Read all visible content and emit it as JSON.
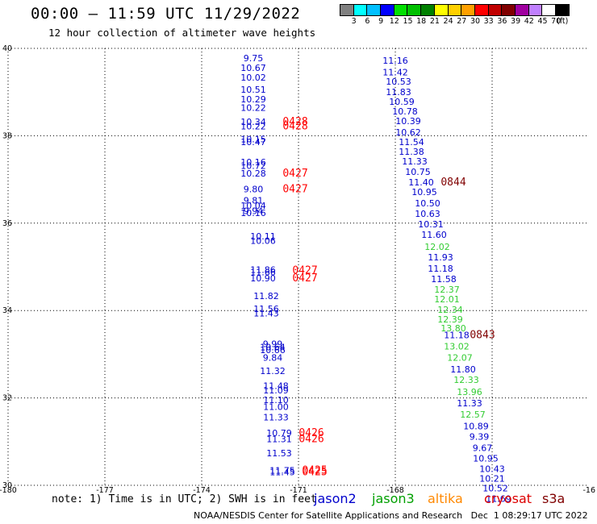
{
  "header": {
    "title": "00:00 — 11:59 UTC 11/29/2022",
    "subtitle": "12 hour collection of altimeter wave heights"
  },
  "colorbar": {
    "colors": [
      "#808080",
      "#00ffff",
      "#00bfff",
      "#0000ff",
      "#00e000",
      "#00c000",
      "#008000",
      "#ffff00",
      "#ffd000",
      "#ffa000",
      "#ff0000",
      "#c00000",
      "#800000",
      "#a000a0",
      "#c080ff",
      "#ffffff",
      "#000000"
    ],
    "labels": [
      "3",
      "6",
      "9",
      "12",
      "15",
      "18",
      "21",
      "24",
      "27",
      "30",
      "33",
      "36",
      "39",
      "42",
      "45",
      "70",
      "(ft)"
    ]
  },
  "note": "note: 1) Time is in UTC; 2) SWH is in feet",
  "legend": [
    {
      "name": "jason2",
      "color": "#0000cc"
    },
    {
      "name": "jason3",
      "color": "#00a000"
    },
    {
      "name": "altika",
      "color": "#ff8800"
    },
    {
      "name": "cryosat",
      "color": "#dd0000"
    },
    {
      "name": "s3a",
      "color": "#800000"
    }
  ],
  "footer": "NOAA/NESDIS Center for Satellite Applications and Research   Dec  1 08:29:17 UTC 2022",
  "chart_data": {
    "type": "scatter",
    "title": "00:00 — 11:59 UTC 11/29/2022",
    "xlim": [
      -180,
      -162
    ],
    "ylim": [
      30,
      40
    ],
    "x_ticks": [
      "-180",
      "-177",
      "-174",
      "-171",
      "-168",
      "-16"
    ],
    "y_ticks": [
      "40",
      "38",
      "36",
      "34",
      "32",
      "30"
    ],
    "grid": true,
    "series": [
      {
        "name": "jason2",
        "color": "#0000cc",
        "points": [
          {
            "x": -172.4,
            "y": 39.78,
            "label": "9.75"
          },
          {
            "x": -172.4,
            "y": 39.56,
            "label": "10.67"
          },
          {
            "x": -172.4,
            "y": 39.34,
            "label": "10.02"
          },
          {
            "x": -172.4,
            "y": 39.06,
            "label": "10.51"
          },
          {
            "x": -172.4,
            "y": 38.84,
            "label": "10.29"
          },
          {
            "x": -172.4,
            "y": 38.64,
            "label": "10.22"
          },
          {
            "x": -172.4,
            "y": 38.32,
            "label": "10.34"
          },
          {
            "x": -172.4,
            "y": 38.22,
            "label": "10.22"
          },
          {
            "x": -172.4,
            "y": 37.92,
            "label": "10.15"
          },
          {
            "x": -172.4,
            "y": 37.86,
            "label": "10.47"
          },
          {
            "x": -172.4,
            "y": 37.4,
            "label": "10.16"
          },
          {
            "x": -172.4,
            "y": 37.32,
            "label": "10.72"
          },
          {
            "x": -172.4,
            "y": 37.14,
            "label": "10.28"
          },
          {
            "x": -172.4,
            "y": 36.78,
            "label": "9.80"
          },
          {
            "x": -172.4,
            "y": 36.52,
            "label": "9.81"
          },
          {
            "x": -172.4,
            "y": 36.4,
            "label": "10.04"
          },
          {
            "x": -172.4,
            "y": 36.28,
            "label": "9.94"
          },
          {
            "x": -172.4,
            "y": 36.24,
            "label": "10.16"
          },
          {
            "x": -172.1,
            "y": 35.7,
            "label": "10.11"
          },
          {
            "x": -172.1,
            "y": 35.6,
            "label": "10.06"
          },
          {
            "x": -172.1,
            "y": 34.94,
            "label": "11.86"
          },
          {
            "x": -172.1,
            "y": 34.88,
            "label": "11.66"
          },
          {
            "x": -172.1,
            "y": 34.74,
            "label": "10.90"
          },
          {
            "x": -172.0,
            "y": 34.34,
            "label": "11.82"
          },
          {
            "x": -172.0,
            "y": 34.04,
            "label": "11.56"
          },
          {
            "x": -172.0,
            "y": 33.94,
            "label": "11.43"
          },
          {
            "x": -171.8,
            "y": 33.24,
            "label": "9.99"
          },
          {
            "x": -171.8,
            "y": 33.16,
            "label": "10.64"
          },
          {
            "x": -171.8,
            "y": 33.1,
            "label": "10.66"
          },
          {
            "x": -171.8,
            "y": 32.92,
            "label": "9.84"
          },
          {
            "x": -171.8,
            "y": 32.62,
            "label": "11.32"
          },
          {
            "x": -171.7,
            "y": 32.28,
            "label": "11.48"
          },
          {
            "x": -171.7,
            "y": 32.18,
            "label": "11.09"
          },
          {
            "x": -171.7,
            "y": 31.96,
            "label": "11.10"
          },
          {
            "x": -171.7,
            "y": 31.8,
            "label": "11.00"
          },
          {
            "x": -171.7,
            "y": 31.56,
            "label": "11.33"
          },
          {
            "x": -171.6,
            "y": 31.2,
            "label": "10.79"
          },
          {
            "x": -171.6,
            "y": 31.06,
            "label": "11.31"
          },
          {
            "x": -171.6,
            "y": 30.74,
            "label": "11.53"
          },
          {
            "x": -171.5,
            "y": 30.34,
            "label": "11.75"
          },
          {
            "x": -171.5,
            "y": 30.3,
            "label": "11.45"
          },
          {
            "x": -168.0,
            "y": 39.72,
            "label": "11.16"
          },
          {
            "x": -168.0,
            "y": 39.46,
            "label": "11.42"
          },
          {
            "x": -167.9,
            "y": 39.24,
            "label": "10.53"
          },
          {
            "x": -167.9,
            "y": 39.0,
            "label": "11.83"
          },
          {
            "x": -167.8,
            "y": 38.78,
            "label": "10.59"
          },
          {
            "x": -167.7,
            "y": 38.56,
            "label": "10.78"
          },
          {
            "x": -167.6,
            "y": 38.34,
            "label": "10.39"
          },
          {
            "x": -167.6,
            "y": 38.08,
            "label": "10.62"
          },
          {
            "x": -167.5,
            "y": 37.86,
            "label": "11.54"
          },
          {
            "x": -167.5,
            "y": 37.64,
            "label": "11.38"
          },
          {
            "x": -167.4,
            "y": 37.42,
            "label": "11.33"
          },
          {
            "x": -167.3,
            "y": 37.18,
            "label": "10.75"
          },
          {
            "x": -167.2,
            "y": 36.94,
            "label": "11.40"
          },
          {
            "x": -167.1,
            "y": 36.72,
            "label": "10.95"
          },
          {
            "x": -167.0,
            "y": 36.46,
            "label": "10.50"
          },
          {
            "x": -167.0,
            "y": 36.22,
            "label": "10.63"
          },
          {
            "x": -166.9,
            "y": 35.98,
            "label": "10.31"
          },
          {
            "x": -166.8,
            "y": 35.74,
            "label": "11.60"
          },
          {
            "x": -166.6,
            "y": 35.22,
            "label": "11.93"
          },
          {
            "x": -166.6,
            "y": 34.96,
            "label": "11.18"
          },
          {
            "x": -166.5,
            "y": 34.72,
            "label": "11.58"
          },
          {
            "x": -166.1,
            "y": 33.44,
            "label": "11.18"
          },
          {
            "x": -165.9,
            "y": 32.66,
            "label": "11.80"
          },
          {
            "x": -165.7,
            "y": 31.88,
            "label": "11.33"
          },
          {
            "x": -165.5,
            "y": 31.36,
            "label": "10.89"
          },
          {
            "x": -165.4,
            "y": 31.12,
            "label": "9.39"
          },
          {
            "x": -165.3,
            "y": 30.86,
            "label": "9.67"
          },
          {
            "x": -165.2,
            "y": 30.62,
            "label": "10.95"
          },
          {
            "x": -165.0,
            "y": 30.38,
            "label": "10.43"
          },
          {
            "x": -165.0,
            "y": 30.16,
            "label": "10.21"
          },
          {
            "x": -164.9,
            "y": 29.94,
            "label": "10.52"
          },
          {
            "x": -164.8,
            "y": 29.7,
            "label": "11.69"
          }
        ]
      },
      {
        "name": "jason3",
        "color": "#33cc33",
        "points": [
          {
            "x": -166.7,
            "y": 35.46,
            "label": "12.02"
          },
          {
            "x": -166.4,
            "y": 34.48,
            "label": "12.37"
          },
          {
            "x": -166.4,
            "y": 34.26,
            "label": "12.01"
          },
          {
            "x": -166.3,
            "y": 34.02,
            "label": "12.34"
          },
          {
            "x": -166.3,
            "y": 33.8,
            "label": "12.39"
          },
          {
            "x": -166.2,
            "y": 33.6,
            "label": "13.80"
          },
          {
            "x": -166.1,
            "y": 33.18,
            "label": "13.02"
          },
          {
            "x": -166.0,
            "y": 32.92,
            "label": "12.07"
          },
          {
            "x": -165.8,
            "y": 32.42,
            "label": "12.33"
          },
          {
            "x": -165.7,
            "y": 32.14,
            "label": "13.96"
          },
          {
            "x": -165.6,
            "y": 31.62,
            "label": "12.57"
          }
        ]
      },
      {
        "name": "cryosat",
        "color": "#ff0000",
        "points": [
          {
            "x": -171.1,
            "y": 38.32,
            "label": "0428"
          },
          {
            "x": -171.1,
            "y": 38.22,
            "label": "0428"
          },
          {
            "x": -171.1,
            "y": 37.14,
            "label": "0427"
          },
          {
            "x": -171.1,
            "y": 36.78,
            "label": "0427"
          },
          {
            "x": -170.8,
            "y": 34.92,
            "label": "0427"
          },
          {
            "x": -170.8,
            "y": 34.74,
            "label": "0427"
          },
          {
            "x": -170.6,
            "y": 31.2,
            "label": "0426"
          },
          {
            "x": -170.6,
            "y": 31.06,
            "label": "0426"
          },
          {
            "x": -170.5,
            "y": 30.34,
            "label": "0425"
          },
          {
            "x": -170.5,
            "y": 30.3,
            "label": "0425"
          }
        ]
      },
      {
        "name": "s3a",
        "color": "#800000",
        "points": [
          {
            "x": -166.2,
            "y": 36.94,
            "label": "0844"
          },
          {
            "x": -165.3,
            "y": 33.44,
            "label": "0843"
          }
        ]
      }
    ]
  }
}
